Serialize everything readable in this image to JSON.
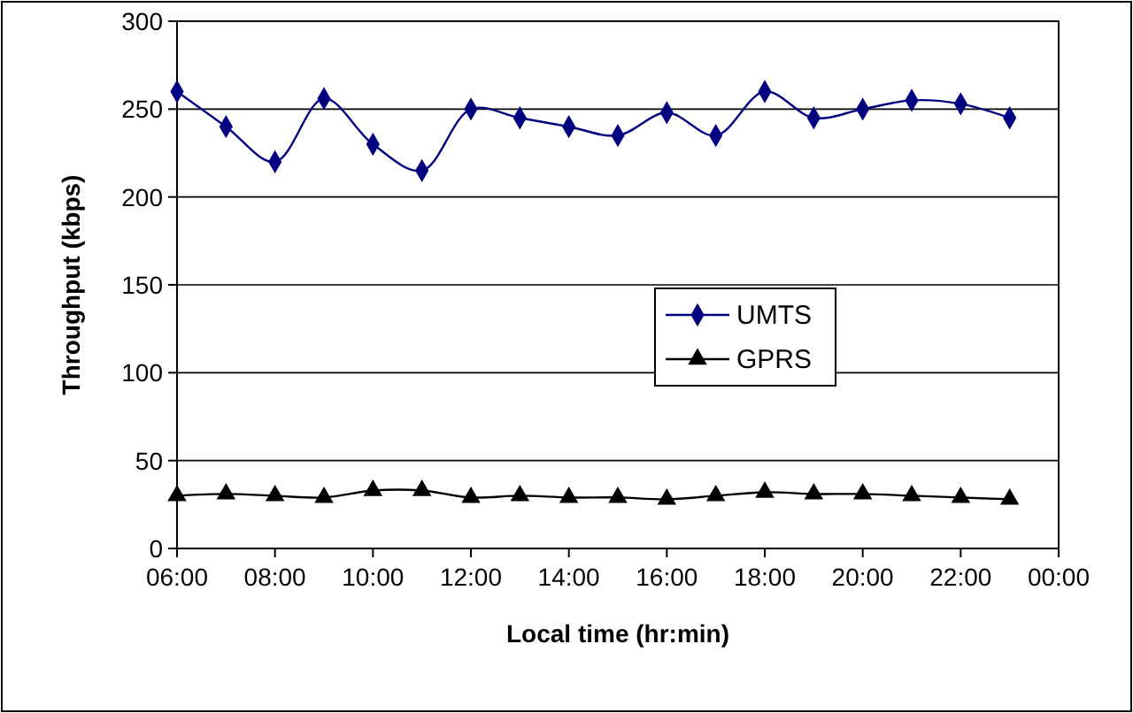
{
  "chart_data": {
    "type": "line",
    "xlabel": "Local time (hr:min)",
    "ylabel": "Throughput (kbps)",
    "x": [
      6,
      7,
      8,
      9,
      10,
      11,
      12,
      13,
      14,
      15,
      16,
      17,
      18,
      19,
      20,
      21,
      22,
      23
    ],
    "series": [
      {
        "name": "UMTS",
        "color": "#000080",
        "marker": "diamond",
        "values": [
          260,
          240,
          220,
          256,
          230,
          215,
          250,
          245,
          240,
          235,
          248,
          235,
          260,
          245,
          250,
          255,
          253,
          245
        ]
      },
      {
        "name": "GPRS",
        "color": "#000000",
        "marker": "triangle",
        "values": [
          30,
          31,
          30,
          29,
          33,
          33,
          29,
          30,
          29,
          29,
          28,
          30,
          32,
          31,
          31,
          30,
          29,
          28
        ]
      }
    ],
    "xlim": [
      6,
      24
    ],
    "xticks": [
      {
        "value": 6,
        "label": "06:00"
      },
      {
        "value": 8,
        "label": "08:00"
      },
      {
        "value": 10,
        "label": "10:00"
      },
      {
        "value": 12,
        "label": "12:00"
      },
      {
        "value": 14,
        "label": "14:00"
      },
      {
        "value": 16,
        "label": "16:00"
      },
      {
        "value": 18,
        "label": "18:00"
      },
      {
        "value": 20,
        "label": "20:00"
      },
      {
        "value": 22,
        "label": "22:00"
      },
      {
        "value": 24,
        "label": "00:00"
      }
    ],
    "ylim": [
      0,
      300
    ],
    "yticks": [
      0,
      50,
      100,
      150,
      200,
      250,
      300
    ],
    "grid": "y",
    "legend": "center"
  }
}
